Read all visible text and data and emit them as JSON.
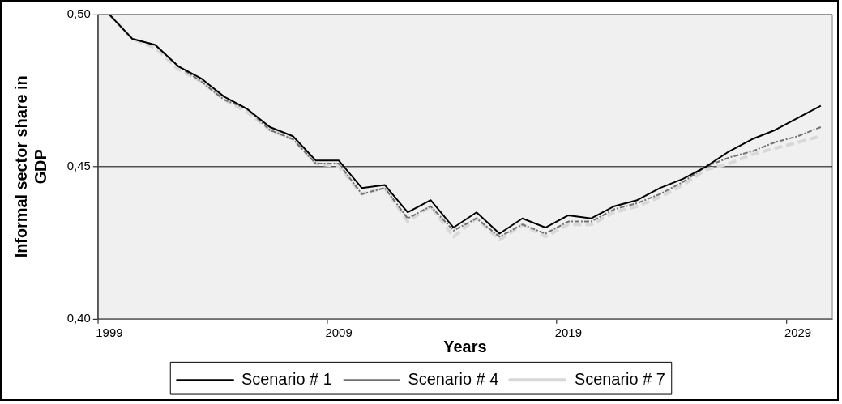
{
  "chart_data": {
    "type": "line",
    "xlabel": "Years",
    "ylabel": "Informal sector share in GDP",
    "categories": [
      "1999",
      null,
      null,
      null,
      null,
      null,
      null,
      null,
      null,
      null,
      "2009",
      null,
      null,
      null,
      null,
      null,
      null,
      null,
      null,
      null,
      "2019",
      null,
      null,
      null,
      null,
      null,
      null,
      null,
      null,
      null,
      "2029",
      null
    ],
    "series": [
      {
        "name": "Scenario # 1",
        "color": "#000000",
        "line_style": "solid",
        "values": [
          0.5,
          0.492,
          0.49,
          0.483,
          0.479,
          0.473,
          0.469,
          0.463,
          0.46,
          0.452,
          0.452,
          0.443,
          0.444,
          0.435,
          0.439,
          0.43,
          0.435,
          0.428,
          0.433,
          0.43,
          0.434,
          0.433,
          0.437,
          0.439,
          0.443,
          0.446,
          0.45,
          0.455,
          0.459,
          0.462,
          0.466,
          0.47
        ]
      },
      {
        "name": "Scenario # 4",
        "color": "#707070",
        "line_style": "dashed",
        "values": [
          0.5,
          0.492,
          0.49,
          0.483,
          0.478,
          0.472,
          0.469,
          0.462,
          0.459,
          0.451,
          0.451,
          0.441,
          0.443,
          0.433,
          0.437,
          0.429,
          0.433,
          0.427,
          0.431,
          0.428,
          0.432,
          0.432,
          0.436,
          0.438,
          0.441,
          0.445,
          0.45,
          0.453,
          0.455,
          0.458,
          0.46,
          0.463
        ]
      },
      {
        "name": "Scenario # 7",
        "color": "#d8d8d8",
        "line_style": "dashed",
        "values": [
          0.5,
          0.492,
          0.489,
          0.482,
          0.478,
          0.472,
          0.468,
          0.462,
          0.459,
          0.451,
          0.45,
          0.441,
          0.443,
          0.432,
          0.437,
          0.427,
          0.433,
          0.426,
          0.431,
          0.427,
          0.431,
          0.431,
          0.435,
          0.437,
          0.44,
          0.444,
          0.449,
          0.451,
          0.454,
          0.456,
          0.458,
          0.46
        ]
      }
    ],
    "ylim": [
      0.4,
      0.5
    ],
    "yticks": [
      {
        "value": 0.4,
        "label": "0,40"
      },
      {
        "value": 0.45,
        "label": "0,45"
      },
      {
        "value": 0.5,
        "label": "0,50"
      }
    ],
    "grid": "y",
    "legend": "bottom",
    "marker": "none"
  }
}
